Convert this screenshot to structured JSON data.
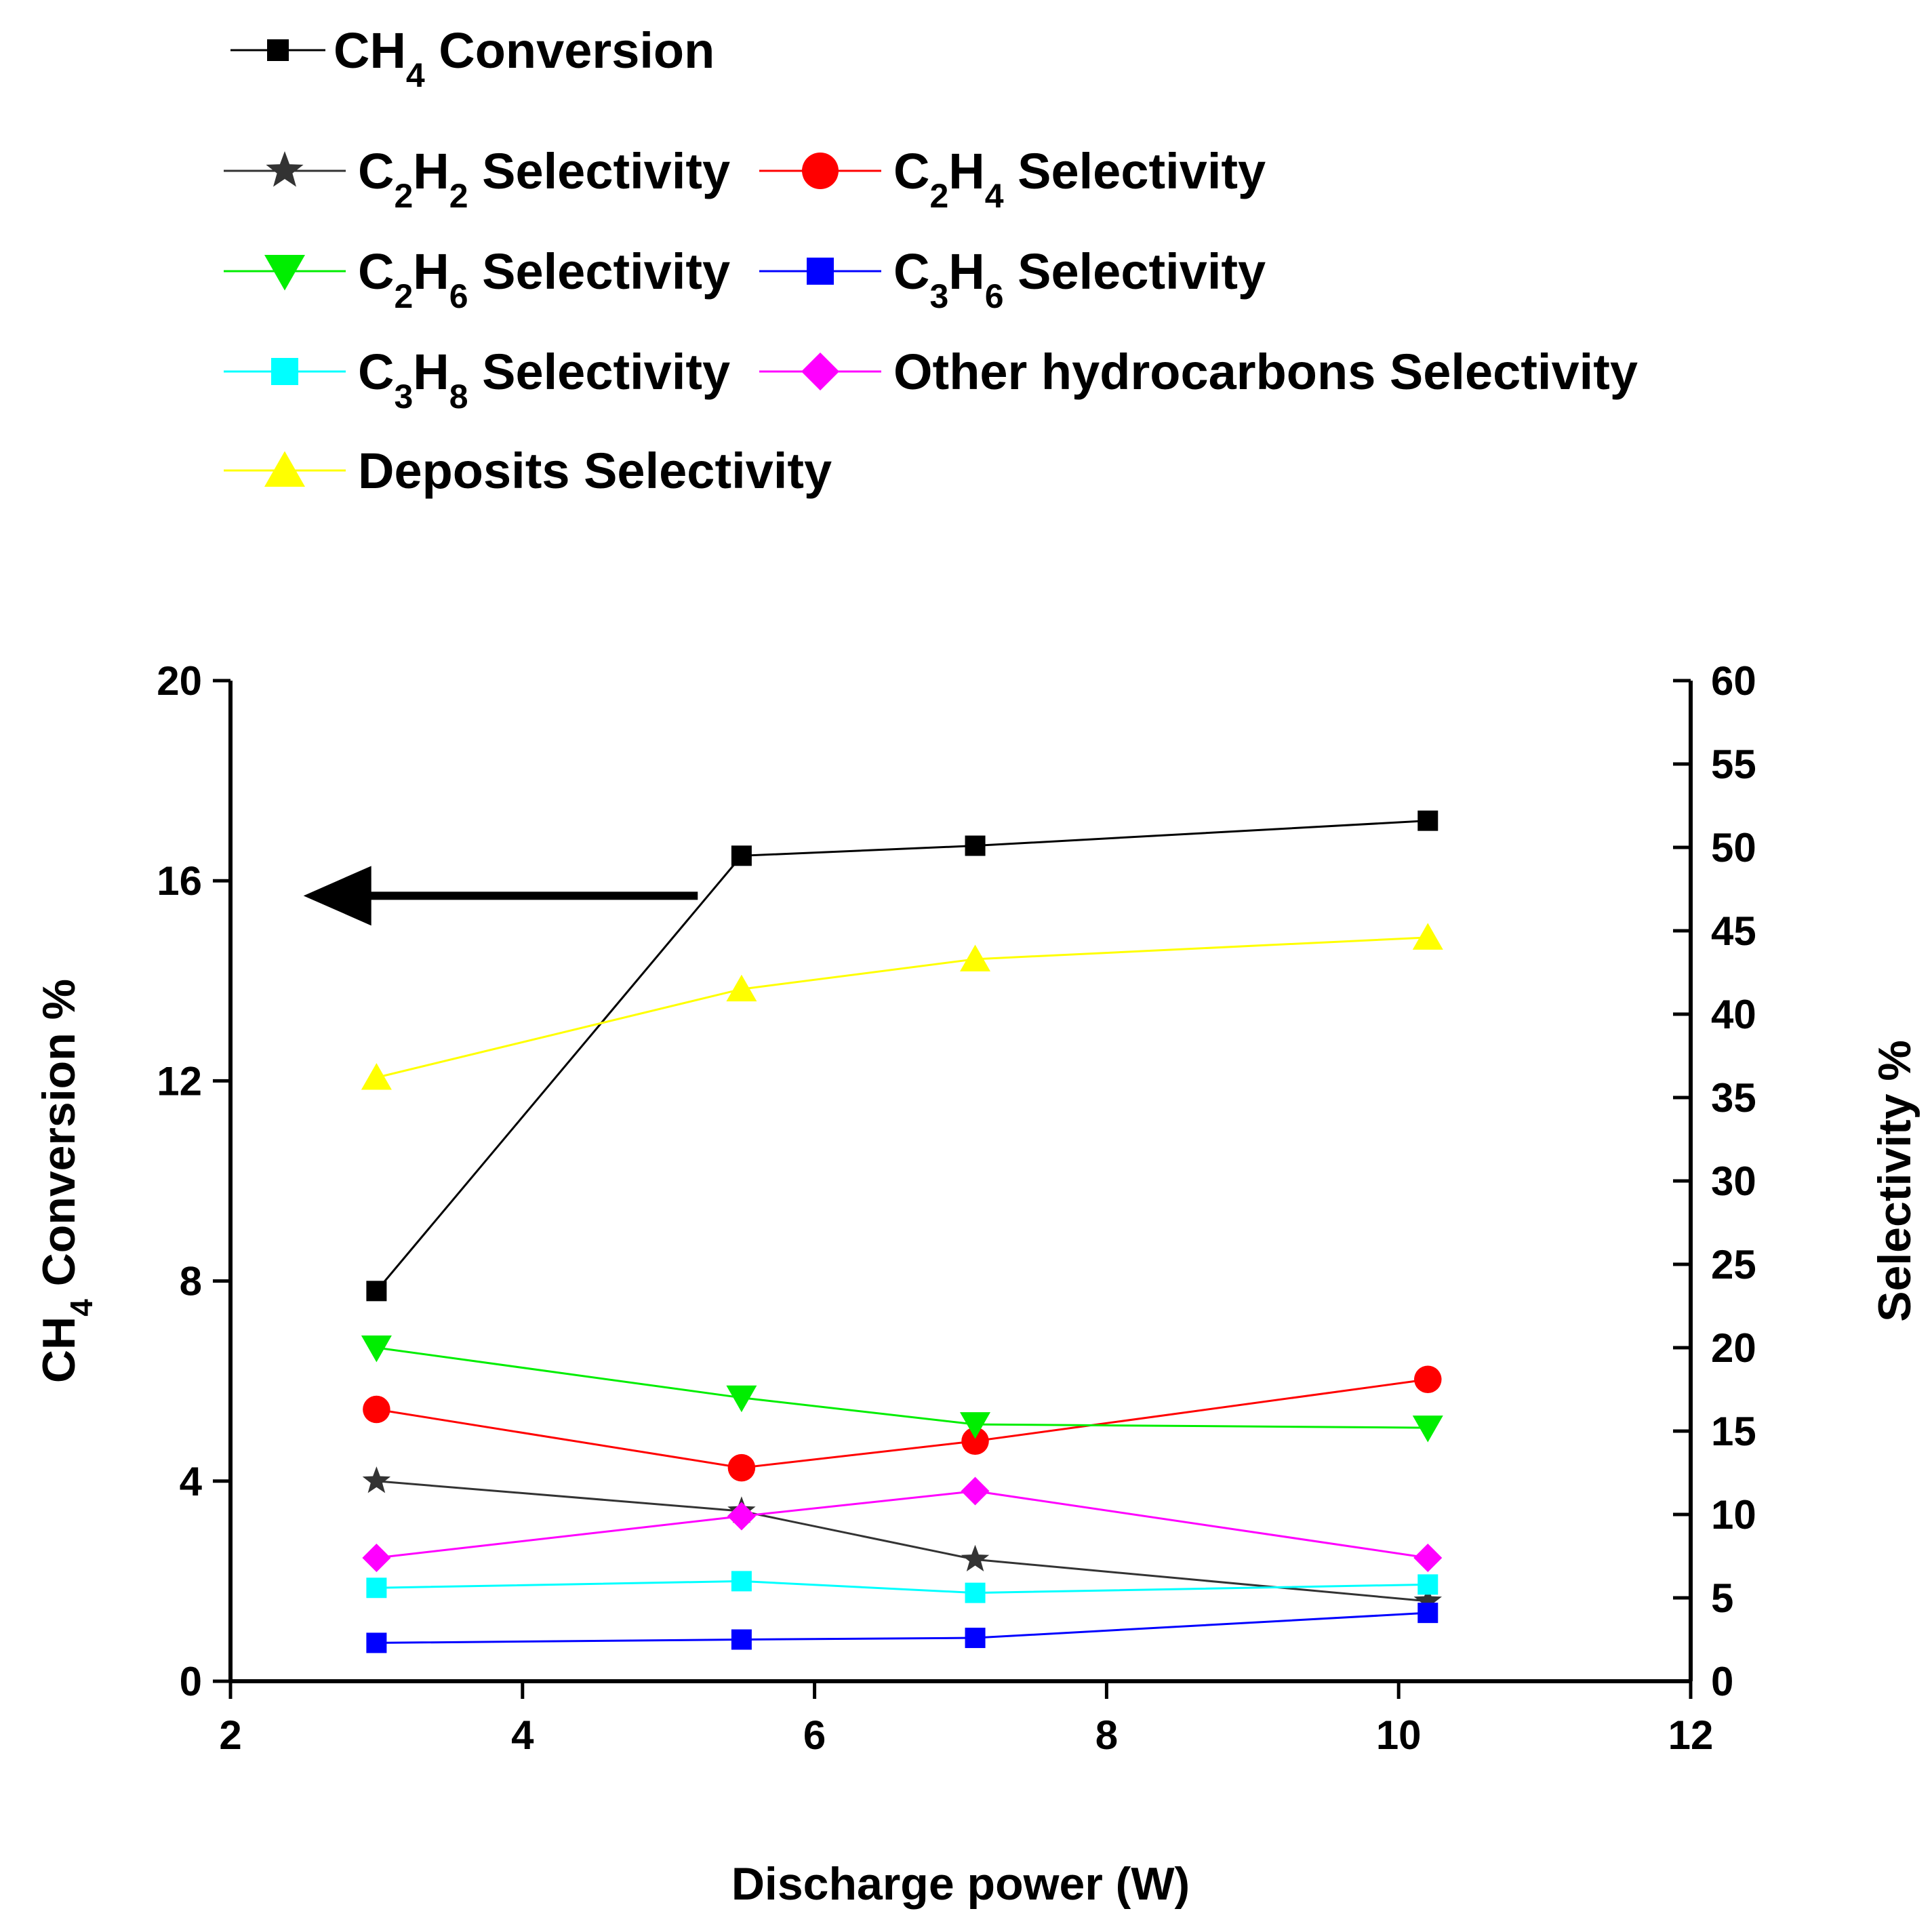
{
  "chart_data": {
    "type": "line",
    "xlabel": "Discharge power (W)",
    "ylabel": "CH4 Conversion %",
    "ylabel_parts": [
      "CH",
      "4",
      " Conversion %"
    ],
    "y2label": "Selectivity %",
    "xlim": [
      2,
      12
    ],
    "ylim": [
      0,
      20
    ],
    "y2lim": [
      0,
      60
    ],
    "x_ticks": [
      "2",
      "4",
      "6",
      "8",
      "10",
      "12"
    ],
    "y_ticks": [
      "0",
      "4",
      "8",
      "12",
      "16",
      "20"
    ],
    "y2_ticks": [
      "0",
      "5",
      "10",
      "15",
      "20",
      "25",
      "30",
      "35",
      "40",
      "45",
      "50",
      "55",
      "60"
    ],
    "grid": false,
    "legend_position": "top-left, above plot",
    "annotations": [
      {
        "type": "arrow",
        "direction": "left",
        "meaning": "CH4 Conversion series reads on left axis",
        "x_from": 5.2,
        "x_to": 2.5,
        "y": 15.7
      }
    ],
    "x": [
      3.0,
      5.5,
      7.1,
      10.2
    ],
    "series": [
      {
        "key": "ch4",
        "name": "CH4 Conversion",
        "label": {
          "base": "CH",
          "sub1": "4",
          "mid": "",
          "sub2": "",
          "rest": " Conversion"
        },
        "axis": "left",
        "color": "#000000",
        "marker": "square",
        "values": [
          7.8,
          16.5,
          16.7,
          17.2
        ]
      },
      {
        "key": "c2h2",
        "name": "C2H2 Selectivity",
        "label": {
          "base": "C",
          "sub1": "2",
          "mid": "H",
          "sub2": "2",
          "rest": " Selectivity"
        },
        "axis": "right",
        "color": "#333333",
        "marker": "star",
        "values": [
          12.0,
          10.2,
          7.3,
          4.8
        ]
      },
      {
        "key": "c2h4",
        "name": "C2H4 Selectivity",
        "label": {
          "base": "C",
          "sub1": "2",
          "mid": "H",
          "sub2": "4",
          "rest": " Selectivity"
        },
        "axis": "right",
        "color": "#ff0000",
        "marker": "circle",
        "values": [
          16.3,
          12.8,
          14.4,
          18.1
        ]
      },
      {
        "key": "c2h6",
        "name": "C2H6 Selectivity",
        "label": {
          "base": "C",
          "sub1": "2",
          "mid": "H",
          "sub2": "6",
          "rest": " Selectivity"
        },
        "axis": "right",
        "color": "#00ee00",
        "marker": "triangle-down",
        "values": [
          20.0,
          17.0,
          15.4,
          15.2
        ]
      },
      {
        "key": "c3h6",
        "name": "C3H6 Selectivity",
        "label": {
          "base": "C",
          "sub1": "3",
          "mid": "H",
          "sub2": "6",
          "rest": " Selectivity"
        },
        "axis": "right",
        "color": "#0000ff",
        "marker": "square",
        "values": [
          2.3,
          2.5,
          2.6,
          4.1
        ]
      },
      {
        "key": "c3h8",
        "name": "C3H8 Selectivity",
        "label": {
          "base": "C",
          "sub1": "3",
          "mid": "H",
          "sub2": "8",
          "rest": " Selectivity"
        },
        "axis": "right",
        "color": "#00ffff",
        "marker": "square",
        "values": [
          5.6,
          6.0,
          5.3,
          5.8
        ]
      },
      {
        "key": "other",
        "name": "Other hydrocarbons Selectivity",
        "label": {
          "base": "Other hydrocarbons Selectivity",
          "sub1": "",
          "mid": "",
          "sub2": "",
          "rest": ""
        },
        "axis": "right",
        "color": "#ff00ff",
        "marker": "diamond",
        "values": [
          7.4,
          9.9,
          11.4,
          7.4
        ]
      },
      {
        "key": "deposits",
        "name": "Deposits Selectivity",
        "label": {
          "base": "Deposits Selectivity",
          "sub1": "",
          "mid": "",
          "sub2": "",
          "rest": ""
        },
        "axis": "right",
        "color": "#ffff00",
        "marker": "triangle-up",
        "values": [
          36.2,
          41.5,
          43.3,
          44.6
        ]
      }
    ]
  }
}
